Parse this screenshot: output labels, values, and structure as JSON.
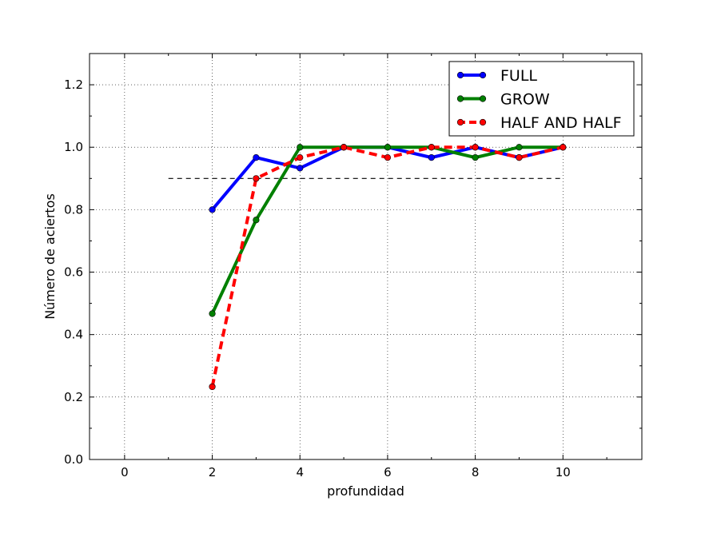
{
  "chart_data": {
    "type": "line",
    "title": "",
    "xlabel": "profundidad",
    "ylabel": "Número de aciertos",
    "xlim": [
      -0.8,
      11.8
    ],
    "ylim": [
      0.0,
      1.3
    ],
    "xticks": [
      0,
      2,
      4,
      6,
      8,
      10
    ],
    "yticks": [
      0.0,
      0.2,
      0.4,
      0.6,
      0.8,
      1.0,
      1.2
    ],
    "xtick_labels": [
      "0",
      "2",
      "4",
      "6",
      "8",
      "10"
    ],
    "ytick_labels": [
      "0.0",
      "0.2",
      "0.4",
      "0.6",
      "0.8",
      "1.0",
      "1.2"
    ],
    "grid": true,
    "legend_position": "top-right",
    "reference_line": {
      "y": 0.9,
      "x": [
        1,
        10
      ],
      "color": "#000000",
      "style": "dashed"
    },
    "series": [
      {
        "name": "FULL",
        "color": "#0000ff",
        "style": "solid",
        "x": [
          2,
          3,
          4,
          5,
          6,
          7,
          8,
          9,
          10
        ],
        "y": [
          0.8,
          0.967,
          0.933,
          1.0,
          1.0,
          0.967,
          1.0,
          0.967,
          1.0
        ]
      },
      {
        "name": "GROW",
        "color": "#008000",
        "style": "solid",
        "x": [
          2,
          3,
          4,
          5,
          6,
          7,
          8,
          9,
          10
        ],
        "y": [
          0.467,
          0.767,
          1.0,
          1.0,
          1.0,
          1.0,
          0.967,
          1.0,
          1.0
        ]
      },
      {
        "name": "HALF AND HALF",
        "color": "#ff0000",
        "style": "dashed",
        "x": [
          2,
          3,
          4,
          5,
          6,
          7,
          8,
          9,
          10
        ],
        "y": [
          0.233,
          0.9,
          0.967,
          1.0,
          0.967,
          1.0,
          1.0,
          0.967,
          1.0
        ]
      }
    ]
  }
}
